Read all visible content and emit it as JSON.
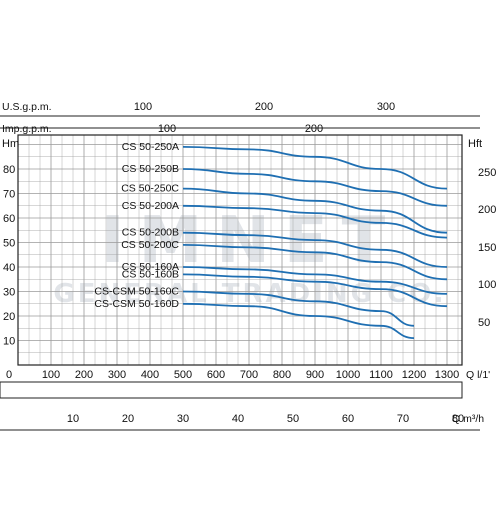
{
  "colors": {
    "curve": "#1f6fb2",
    "grid": "#9a9a9a",
    "frame": "#222222"
  },
  "axes": {
    "us_gpm_label": "U.S.g.p.m.",
    "us_gpm_ticks": [
      "100",
      "200",
      "300"
    ],
    "imp_gpm_label": "Imp.g.p.m.",
    "imp_gpm_ticks": [
      "100",
      "200"
    ],
    "left_unit": "Hm",
    "right_unit": "Hft",
    "left_ticks": [
      "10",
      "20",
      "30",
      "40",
      "50",
      "60",
      "70",
      "80"
    ],
    "right_ticks": [
      "50",
      "100",
      "150",
      "200",
      "250"
    ],
    "q_lmin_label": "Q  l/1'",
    "q_lmin_ticks": [
      "0",
      "100",
      "200",
      "300",
      "400",
      "500",
      "600",
      "700",
      "800",
      "900",
      "1000",
      "1100",
      "1200",
      "1300"
    ],
    "q_m3h_label": "Q  m³/h",
    "q_m3h_ticks": [
      "10",
      "20",
      "30",
      "40",
      "50",
      "60",
      "70",
      "80"
    ]
  },
  "watermark": {
    "line1": "IMNET",
    "line2": "GENERAL TRADING CO."
  },
  "chart_data": {
    "type": "line",
    "title": "",
    "xlabel": "Q l/1'",
    "ylabel": "Hm",
    "xlim": [
      0,
      1400
    ],
    "ylim": [
      0,
      90
    ],
    "x2_label": "Q m³/h",
    "x2_ticks": [
      10,
      20,
      30,
      40,
      50,
      60,
      70,
      80
    ],
    "y2_label": "Hft",
    "y2_ticks": [
      50,
      100,
      150,
      200,
      250
    ],
    "top_scales": {
      "us_gpm_ticks": [
        100,
        200,
        300
      ],
      "imp_gpm_ticks": [
        100,
        200
      ]
    },
    "grid": true,
    "series": [
      {
        "name": "CS 50-250A",
        "x": [
          500,
          700,
          900,
          1100,
          1300
        ],
        "y": [
          89,
          88,
          85,
          80,
          72
        ]
      },
      {
        "name": "CS 50-250B",
        "x": [
          500,
          700,
          900,
          1100,
          1300
        ],
        "y": [
          80,
          78,
          75,
          71,
          65
        ]
      },
      {
        "name": "CS 50-250C",
        "x": [
          500,
          700,
          900,
          1100,
          1300
        ],
        "y": [
          72,
          70,
          67,
          63,
          54
        ]
      },
      {
        "name": "CS 50-200A",
        "x": [
          500,
          700,
          900,
          1100,
          1300
        ],
        "y": [
          65,
          64,
          62,
          58,
          52
        ]
      },
      {
        "name": "CS 50-200B",
        "x": [
          500,
          700,
          900,
          1100,
          1300
        ],
        "y": [
          54,
          53,
          51,
          47,
          40
        ]
      },
      {
        "name": "CS 50-200C",
        "x": [
          500,
          700,
          900,
          1100,
          1300
        ],
        "y": [
          49,
          48,
          46,
          42,
          35
        ]
      },
      {
        "name": "CS 50-160A",
        "x": [
          500,
          700,
          900,
          1100,
          1300
        ],
        "y": [
          40,
          39,
          37,
          34,
          29
        ]
      },
      {
        "name": "CS 50-160B",
        "x": [
          500,
          700,
          900,
          1100,
          1300
        ],
        "y": [
          37,
          36,
          34,
          31,
          24
        ]
      },
      {
        "name": "CS-CSM 50-160C",
        "x": [
          500,
          700,
          900,
          1100,
          1200
        ],
        "y": [
          30,
          29,
          26,
          22,
          16
        ]
      },
      {
        "name": "CS-CSM 50-160D",
        "x": [
          500,
          700,
          900,
          1100,
          1200
        ],
        "y": [
          25,
          24,
          20,
          16,
          11
        ]
      }
    ]
  }
}
